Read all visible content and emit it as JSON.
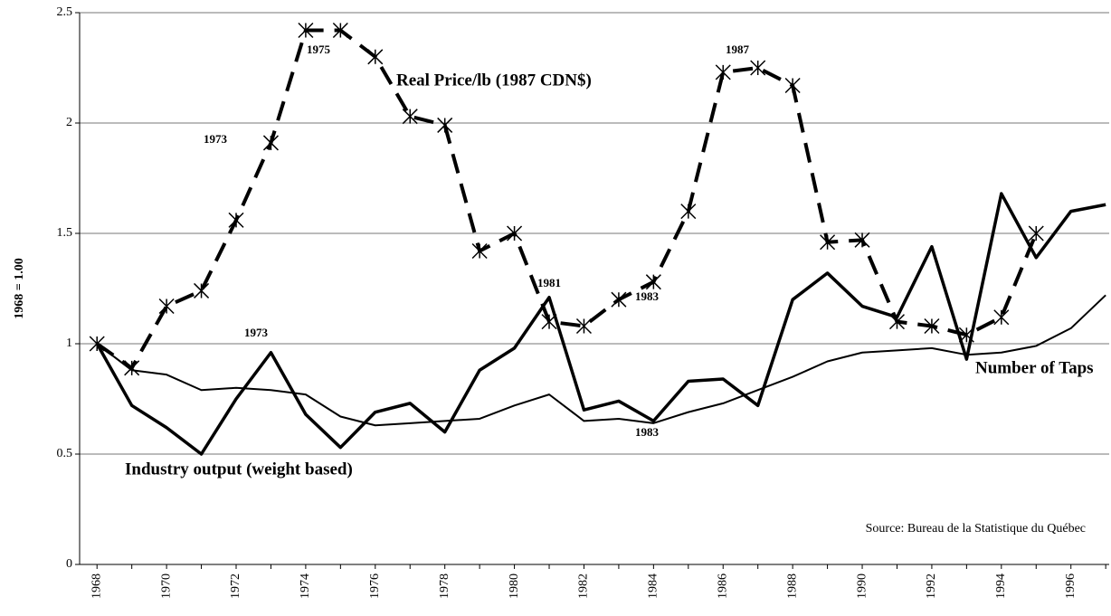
{
  "chart_data": {
    "type": "line",
    "ylabel": "1968 = 1.00",
    "x": [
      1968,
      1969,
      1970,
      1971,
      1972,
      1973,
      1974,
      1975,
      1976,
      1977,
      1978,
      1979,
      1980,
      1981,
      1982,
      1983,
      1984,
      1985,
      1986,
      1987,
      1988,
      1989,
      1990,
      1991,
      1992,
      1993,
      1994,
      1995,
      1996,
      1997
    ],
    "xlim": [
      1967.5,
      1997.1
    ],
    "xticks": [
      1968,
      1970,
      1972,
      1974,
      1976,
      1978,
      1980,
      1982,
      1984,
      1986,
      1988,
      1990,
      1992,
      1994,
      1996
    ],
    "ylim": [
      0,
      2.5
    ],
    "yticks": [
      0,
      0.5,
      1,
      1.5,
      2,
      2.5
    ],
    "grid": true,
    "series": [
      {
        "name": "Real Price/lb (1987 CDN$)",
        "color": "#000000",
        "dashed": true,
        "marker": "asterisk",
        "linewidth": 4,
        "values": [
          1.0,
          0.89,
          1.17,
          1.24,
          1.56,
          1.91,
          2.42,
          2.42,
          2.3,
          2.03,
          1.99,
          1.42,
          1.5,
          1.1,
          1.08,
          1.2,
          1.28,
          1.6,
          2.23,
          2.25,
          2.17,
          1.46,
          1.47,
          1.1,
          1.08,
          1.04,
          1.12,
          1.5,
          null,
          null
        ]
      },
      {
        "name": "Industry output (weight based)",
        "color": "#000000",
        "dashed": false,
        "marker": "none",
        "linewidth": 3.5,
        "values": [
          1.0,
          0.72,
          0.62,
          0.5,
          0.75,
          0.96,
          0.68,
          0.53,
          0.69,
          0.73,
          0.6,
          0.88,
          0.98,
          1.21,
          0.7,
          0.74,
          0.65,
          0.83,
          0.84,
          0.72,
          1.2,
          1.32,
          1.17,
          1.12,
          1.44,
          0.93,
          1.68,
          1.39,
          1.6,
          1.63
        ]
      },
      {
        "name": "Number of Taps",
        "color": "#000000",
        "dashed": false,
        "marker": "none",
        "linewidth": 2,
        "values": [
          1.0,
          0.88,
          0.86,
          0.79,
          0.8,
          0.79,
          0.77,
          0.67,
          0.63,
          0.64,
          0.65,
          0.66,
          0.72,
          0.77,
          0.65,
          0.66,
          0.64,
          0.69,
          0.73,
          0.79,
          0.85,
          0.92,
          0.96,
          0.97,
          0.98,
          0.95,
          0.96,
          0.99,
          1.07,
          1.22
        ]
      }
    ],
    "annotations": [
      "1973",
      "1975",
      "1987",
      "1981",
      "1983",
      "1973",
      "1983",
      "Source: Bureau de la Statistique du Québec"
    ]
  }
}
